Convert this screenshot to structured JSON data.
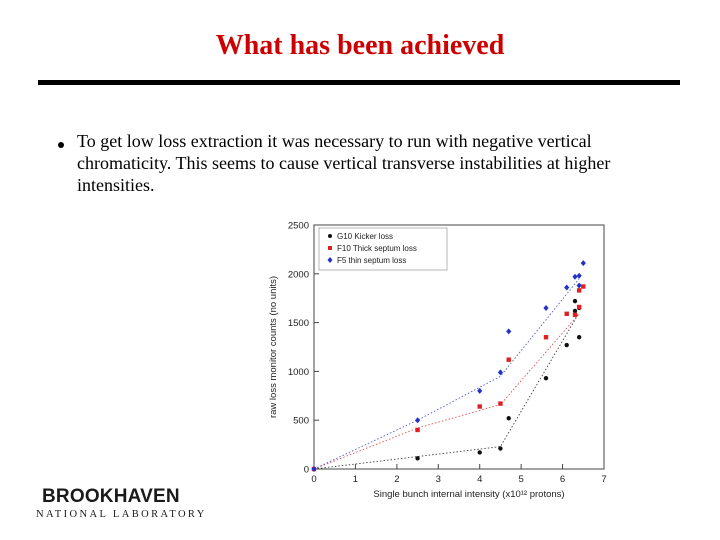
{
  "slide": {
    "title": "What has been achieved",
    "bullet": "To get low loss extraction it was necessary to run with negative vertical chromaticity. This seems to cause vertical transverse instabilities at higher intensities."
  },
  "logo": {
    "name": "BROOKHAVEN",
    "subtitle": "NATIONAL LABORATORY"
  },
  "chart_data": {
    "type": "scatter",
    "xlabel": "Single bunch internal intensity (x10¹² protons)",
    "ylabel": "raw loss monitor counts (no units)",
    "xlim": [
      0,
      7
    ],
    "ylim": [
      0,
      2500
    ],
    "xticks": [
      "0",
      "1",
      "2",
      "3",
      "4",
      "5",
      "6",
      "7"
    ],
    "yticks": [
      "0",
      "500",
      "1000",
      "1500",
      "2000",
      "2500"
    ],
    "grid": false,
    "legend_position": "top-left",
    "series": [
      {
        "name": "G10 Kicker loss",
        "color": "#111111",
        "marker": "circle",
        "points": [
          [
            0,
            0
          ],
          [
            2.5,
            110
          ],
          [
            4,
            170
          ],
          [
            4.5,
            210
          ],
          [
            4.7,
            520
          ],
          [
            5.6,
            930
          ],
          [
            6.1,
            1270
          ],
          [
            6.4,
            1350
          ],
          [
            6.3,
            1620
          ],
          [
            6.4,
            1650
          ],
          [
            6.3,
            1720
          ]
        ],
        "fit": [
          [
            0,
            0
          ],
          [
            4.5,
            230
          ],
          [
            6.4,
            1600
          ]
        ]
      },
      {
        "name": "F10 Thick septum loss",
        "color": "#e02020",
        "marker": "square",
        "points": [
          [
            0,
            0
          ],
          [
            2.5,
            400
          ],
          [
            4,
            640
          ],
          [
            4.5,
            670
          ],
          [
            4.7,
            1120
          ],
          [
            5.6,
            1350
          ],
          [
            6.1,
            1590
          ],
          [
            6.3,
            1580
          ],
          [
            6.4,
            1660
          ],
          [
            6.4,
            1830
          ],
          [
            6.5,
            1870
          ]
        ],
        "fit": [
          [
            0,
            0
          ],
          [
            2.5,
            420
          ],
          [
            4.5,
            660
          ],
          [
            6.4,
            1590
          ]
        ]
      },
      {
        "name": "F5 thin septum loss",
        "color": "#2233cc",
        "marker": "diamond",
        "points": [
          [
            0,
            0
          ],
          [
            2.5,
            500
          ],
          [
            4,
            800
          ],
          [
            4.5,
            990
          ],
          [
            4.7,
            1410
          ],
          [
            5.6,
            1650
          ],
          [
            6.1,
            1860
          ],
          [
            6.3,
            1970
          ],
          [
            6.4,
            1980
          ],
          [
            6.4,
            1880
          ],
          [
            6.5,
            2110
          ]
        ],
        "fit": [
          [
            0,
            0
          ],
          [
            2.5,
            500
          ],
          [
            4.5,
            950
          ],
          [
            6.4,
            1950
          ]
        ]
      }
    ]
  }
}
